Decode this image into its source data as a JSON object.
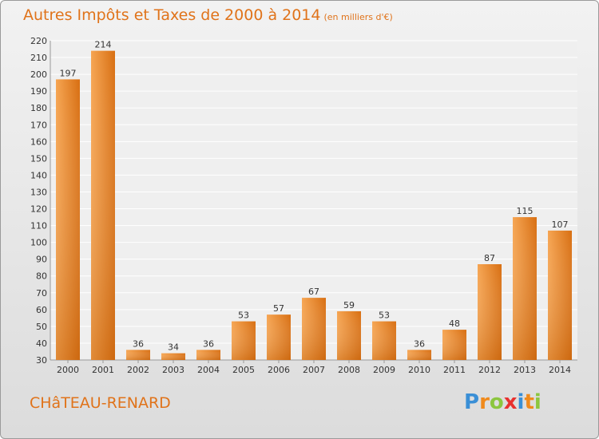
{
  "title": "Autres Impôts et Taxes de 2000 à 2014",
  "subtitle": "(en milliers d'€)",
  "commune": "CHâTEAU-RENARD",
  "logo": {
    "letters": [
      "P",
      "r",
      "o",
      "x",
      "i",
      "t",
      "i"
    ],
    "colors": [
      "#3a8fd6",
      "#f08a1c",
      "#8cc63f",
      "#e8312f",
      "#3a8fd6",
      "#f08a1c",
      "#8cc63f"
    ]
  },
  "colors": {
    "bar_light": "#f6a552",
    "bar_dark": "#d86f12",
    "accent": "#e0731a"
  },
  "chart_data": {
    "type": "bar",
    "title": "Autres Impôts et Taxes de 2000 à 2014",
    "subtitle": "(en milliers d'€)",
    "categories": [
      "2000",
      "2001",
      "2002",
      "2003",
      "2004",
      "2005",
      "2006",
      "2007",
      "2008",
      "2009",
      "2010",
      "2011",
      "2012",
      "2013",
      "2014"
    ],
    "values": [
      197,
      214,
      36,
      34,
      36,
      53,
      57,
      67,
      59,
      53,
      36,
      48,
      87,
      115,
      107
    ],
    "ylim": [
      30,
      220
    ],
    "yticks": [
      30,
      40,
      50,
      60,
      70,
      80,
      90,
      100,
      110,
      120,
      130,
      140,
      150,
      160,
      170,
      180,
      190,
      200,
      210,
      220
    ],
    "grid": true,
    "xlabel": "",
    "ylabel": ""
  }
}
